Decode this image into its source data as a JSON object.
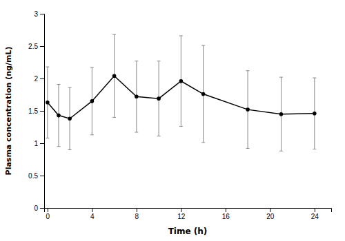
{
  "chart_data": {
    "type": "line",
    "x": [
      0,
      1,
      2,
      4,
      6,
      8,
      10,
      12,
      14,
      18,
      21,
      24
    ],
    "series": [
      {
        "values": [
          1.63,
          1.43,
          1.38,
          1.65,
          2.04,
          1.72,
          1.69,
          1.96,
          1.76,
          1.52,
          1.45,
          1.46
        ],
        "sd": [
          0.55,
          0.48,
          0.48,
          0.52,
          0.64,
          0.55,
          0.58,
          0.7,
          0.75,
          0.6,
          0.57,
          0.55
        ],
        "color": "#000000",
        "marker": "circle"
      }
    ],
    "xlabel": "Time (h)",
    "ylabel": "Plasma concentration (ng/mL)",
    "xlim": [
      -0.3,
      25.5
    ],
    "ylim": [
      0,
      3.0
    ],
    "xticks": [
      0,
      4,
      8,
      12,
      16,
      20,
      24
    ],
    "yticks": [
      0,
      0.5,
      1,
      1.5,
      2,
      2.5,
      3
    ],
    "grid": false
  }
}
